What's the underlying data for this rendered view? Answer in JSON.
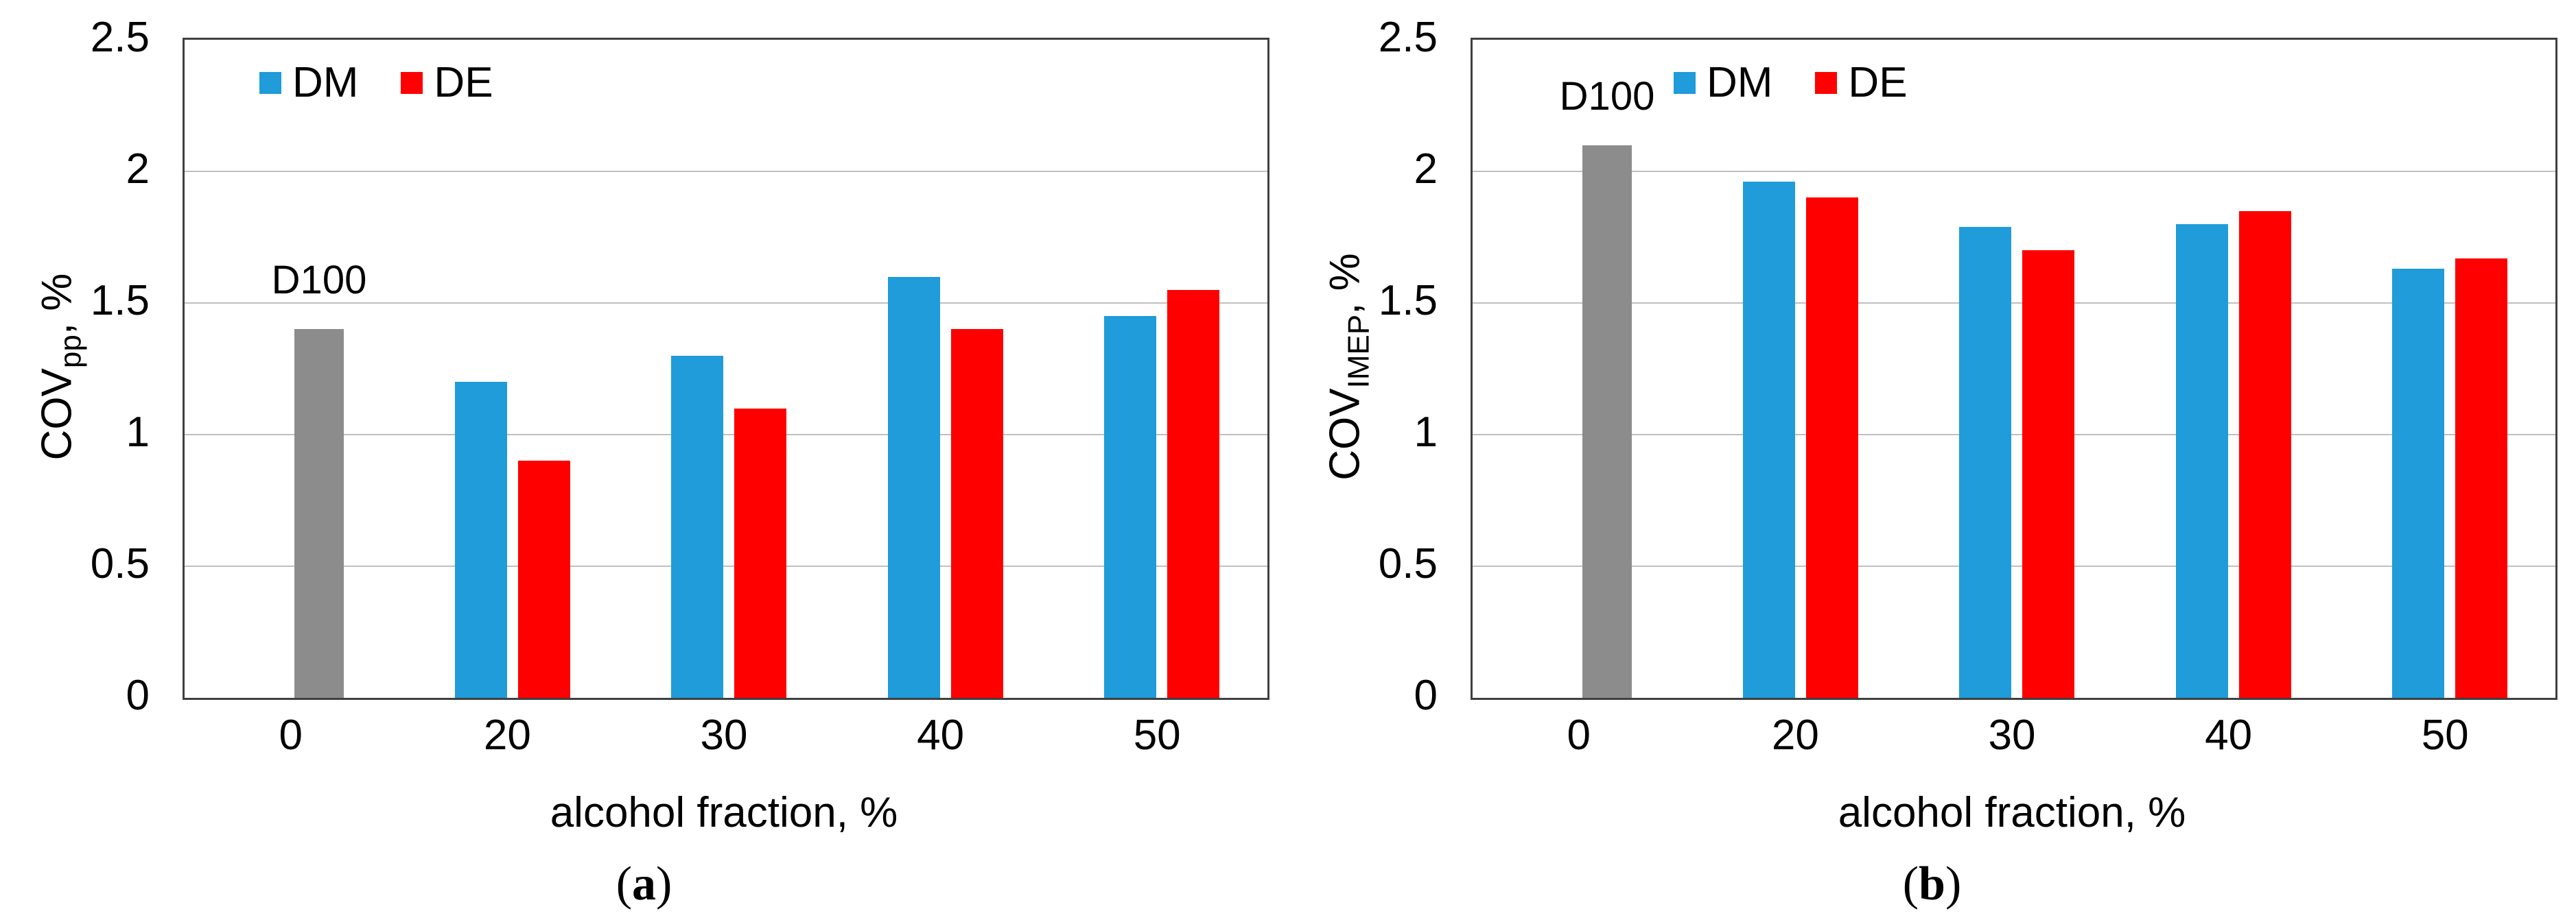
{
  "figure": {
    "background": "#ffffff",
    "border_color": "#404040",
    "gridline_color": "#bfbfbf",
    "colors": {
      "DM": "#1f9cd9",
      "DE": "#fe0000",
      "D100": "#8c8c8c"
    }
  },
  "chart_data": [
    {
      "type": "bar",
      "caption_letter": "a",
      "caption_open": "(",
      "caption_close": ")",
      "ylabel_base": "COV",
      "ylabel_sub": "pp",
      "ylabel_suffix": ", %",
      "xlabel": "alcohol fraction, %",
      "categories": [
        "0",
        "20",
        "30",
        "40",
        "50"
      ],
      "ytick_labels": [
        "2.5",
        "2",
        "1.5",
        "1",
        "0.5",
        "0"
      ],
      "ytick_values": [
        2.5,
        2,
        1.5,
        1,
        0.5,
        0
      ],
      "ylim": [
        0,
        2.5
      ],
      "gridline_values": [
        2,
        1.5,
        1,
        0.5
      ],
      "grid": true,
      "legend_position": "top-inside",
      "annotation": {
        "label": "D100",
        "category_index": 0,
        "value": 1.4,
        "color": "#8c8c8c"
      },
      "series": [
        {
          "name": "DM",
          "color": "#1f9cd9",
          "values": [
            null,
            1.2,
            1.3,
            1.6,
            1.45
          ]
        },
        {
          "name": "DE",
          "color": "#fe0000",
          "values": [
            null,
            0.9,
            1.1,
            1.4,
            1.55
          ]
        }
      ]
    },
    {
      "type": "bar",
      "caption_letter": "b",
      "caption_open": "(",
      "caption_close": ")",
      "ylabel_base": "COV",
      "ylabel_sub": "IMEP",
      "ylabel_suffix": ", %",
      "xlabel": "alcohol fraction, %",
      "categories": [
        "0",
        "20",
        "30",
        "40",
        "50"
      ],
      "ytick_labels": [
        "2.5",
        "2",
        "1.5",
        "1",
        "0.5",
        "0"
      ],
      "ytick_values": [
        2.5,
        2,
        1.5,
        1,
        0.5,
        0
      ],
      "ylim": [
        0,
        2.5
      ],
      "gridline_values": [
        2,
        1.5,
        1,
        0.5
      ],
      "grid": true,
      "legend_position": "top-inside",
      "annotation": {
        "label": "D100",
        "category_index": 0,
        "value": 2.1,
        "color": "#8c8c8c"
      },
      "series": [
        {
          "name": "DM",
          "color": "#1f9cd9",
          "values": [
            null,
            1.96,
            1.79,
            1.8,
            1.63
          ]
        },
        {
          "name": "DE",
          "color": "#fe0000",
          "values": [
            null,
            1.9,
            1.7,
            1.85,
            1.67
          ]
        }
      ]
    }
  ]
}
